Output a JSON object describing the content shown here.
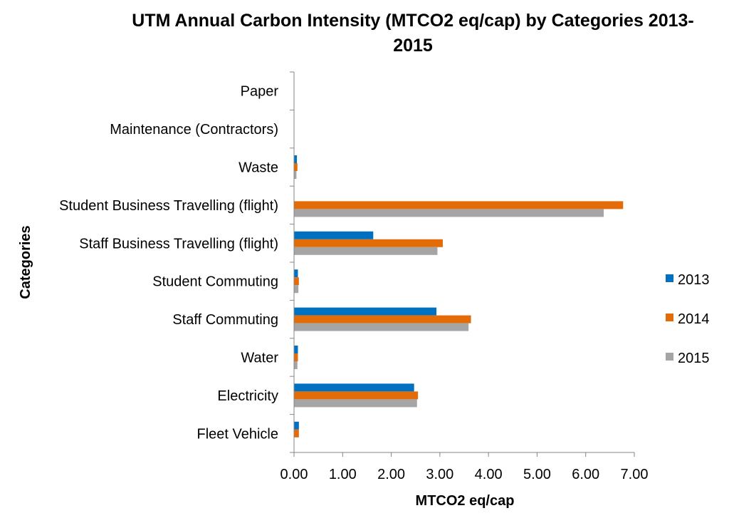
{
  "chart_data": {
    "type": "bar",
    "orientation": "horizontal",
    "title": "UTM Annual Carbon Intensity (MTCO2 eq/cap) by Categories 2013-2015",
    "xlabel": "MTCO2 eq/cap",
    "ylabel": "Categories",
    "categories": [
      "Paper",
      "Maintenance (Contractors)",
      "Waste",
      "Student Business Travelling (flight)",
      "Staff Business Travelling (flight)",
      "Student Commuting",
      "Staff Commuting",
      "Water",
      "Electricity",
      "Fleet Vehicle"
    ],
    "series": [
      {
        "name": "2013",
        "color": "#0070C0",
        "values": [
          0,
          0,
          0.06,
          0,
          1.63,
          0.08,
          2.93,
          0.08,
          2.47,
          0.1
        ]
      },
      {
        "name": "2014",
        "color": "#E36C09",
        "values": [
          0,
          0,
          0.07,
          6.77,
          3.06,
          0.1,
          3.64,
          0.08,
          2.55,
          0.1
        ]
      },
      {
        "name": "2015",
        "color": "#A5A5A5",
        "values": [
          0,
          0,
          0.05,
          6.37,
          2.95,
          0.09,
          3.59,
          0.07,
          2.53,
          0
        ]
      }
    ],
    "xlim": [
      0,
      7
    ],
    "x_ticks": [
      "0.00",
      "1.00",
      "2.00",
      "3.00",
      "4.00",
      "5.00",
      "6.00",
      "7.00"
    ],
    "grid": false,
    "legend_position": "right"
  }
}
